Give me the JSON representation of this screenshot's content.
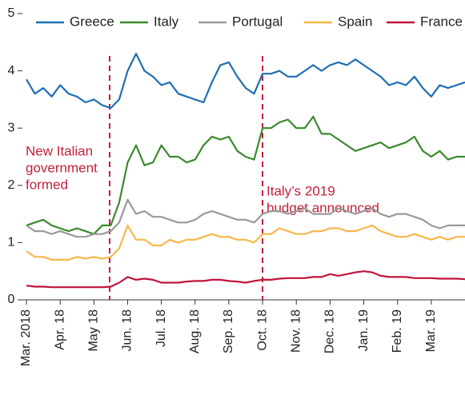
{
  "chart_data": {
    "type": "line",
    "categories": [
      "Mar. 2018",
      null,
      null,
      null,
      "Apr. 18",
      null,
      null,
      null,
      "May 18",
      null,
      null,
      null,
      "Jun. 18",
      null,
      null,
      null,
      "Jul. 18",
      null,
      null,
      null,
      "Aug. 18",
      null,
      null,
      null,
      "Sep. 18",
      null,
      null,
      null,
      "Oct. 18",
      null,
      null,
      null,
      "Nov. 18",
      null,
      null,
      null,
      "Dec. 18",
      null,
      null,
      null,
      "Jan. 19",
      null,
      null,
      null,
      "Feb. 19",
      null,
      null,
      null,
      "Mar. 19",
      null,
      null,
      null,
      null
    ],
    "series": [
      {
        "name": "Greece",
        "color": "#1f6fb4",
        "values": [
          3.85,
          3.6,
          3.7,
          3.55,
          3.75,
          3.6,
          3.55,
          3.45,
          3.5,
          3.4,
          3.35,
          3.5,
          4.0,
          4.3,
          4.0,
          3.9,
          3.75,
          3.8,
          3.6,
          3.55,
          3.5,
          3.45,
          3.8,
          4.1,
          4.15,
          3.9,
          3.7,
          3.6,
          3.95,
          3.95,
          4.0,
          3.9,
          3.9,
          4.0,
          4.1,
          4.0,
          4.1,
          4.15,
          4.1,
          4.2,
          4.1,
          4.0,
          3.9,
          3.75,
          3.8,
          3.75,
          3.9,
          3.7,
          3.55,
          3.75,
          3.7,
          3.75,
          3.8
        ]
      },
      {
        "name": "Italy",
        "color": "#3b8a2e",
        "values": [
          1.3,
          1.35,
          1.4,
          1.3,
          1.25,
          1.2,
          1.25,
          1.2,
          1.15,
          1.3,
          1.3,
          1.7,
          2.4,
          2.7,
          2.35,
          2.4,
          2.7,
          2.5,
          2.5,
          2.4,
          2.45,
          2.7,
          2.85,
          2.8,
          2.85,
          2.6,
          2.5,
          2.45,
          3.0,
          3.0,
          3.1,
          3.15,
          3.0,
          3.0,
          3.2,
          2.9,
          2.9,
          2.8,
          2.7,
          2.6,
          2.65,
          2.7,
          2.75,
          2.65,
          2.7,
          2.75,
          2.85,
          2.6,
          2.5,
          2.6,
          2.45,
          2.5,
          2.5
        ]
      },
      {
        "name": "Portugal",
        "color": "#9a9a9a",
        "values": [
          1.3,
          1.2,
          1.2,
          1.15,
          1.2,
          1.15,
          1.1,
          1.1,
          1.15,
          1.15,
          1.2,
          1.35,
          1.75,
          1.5,
          1.55,
          1.45,
          1.45,
          1.4,
          1.35,
          1.35,
          1.4,
          1.5,
          1.55,
          1.5,
          1.45,
          1.4,
          1.4,
          1.35,
          1.5,
          1.55,
          1.55,
          1.5,
          1.55,
          1.6,
          1.5,
          1.5,
          1.5,
          1.6,
          1.55,
          1.5,
          1.55,
          1.6,
          1.5,
          1.45,
          1.5,
          1.5,
          1.45,
          1.4,
          1.3,
          1.25,
          1.3,
          1.3,
          1.3
        ]
      },
      {
        "name": "Spain",
        "color": "#f7b84a",
        "values": [
          0.85,
          0.75,
          0.75,
          0.7,
          0.7,
          0.7,
          0.75,
          0.72,
          0.75,
          0.72,
          0.75,
          0.9,
          1.3,
          1.05,
          1.05,
          0.95,
          0.95,
          1.05,
          1.0,
          1.05,
          1.05,
          1.1,
          1.15,
          1.1,
          1.1,
          1.05,
          1.05,
          1.0,
          1.15,
          1.15,
          1.25,
          1.2,
          1.15,
          1.15,
          1.2,
          1.2,
          1.25,
          1.25,
          1.2,
          1.2,
          1.25,
          1.3,
          1.2,
          1.15,
          1.1,
          1.1,
          1.15,
          1.1,
          1.05,
          1.1,
          1.05,
          1.1,
          1.1
        ]
      },
      {
        "name": "France",
        "color": "#c0143c",
        "values": [
          0.25,
          0.23,
          0.23,
          0.22,
          0.22,
          0.22,
          0.22,
          0.22,
          0.22,
          0.22,
          0.23,
          0.3,
          0.4,
          0.35,
          0.37,
          0.35,
          0.3,
          0.3,
          0.3,
          0.32,
          0.33,
          0.33,
          0.35,
          0.35,
          0.33,
          0.32,
          0.3,
          0.33,
          0.35,
          0.35,
          0.37,
          0.38,
          0.38,
          0.38,
          0.4,
          0.4,
          0.45,
          0.42,
          0.45,
          0.48,
          0.5,
          0.48,
          0.42,
          0.4,
          0.4,
          0.4,
          0.38,
          0.38,
          0.38,
          0.37,
          0.37,
          0.37,
          0.36
        ]
      }
    ],
    "ylim": [
      0,
      5
    ],
    "yticks": [
      0,
      1,
      2,
      3,
      4,
      5
    ],
    "annotations": [
      {
        "text": [
          "New Italian",
          "government",
          "formed"
        ],
        "color": "#c41e3a"
      },
      {
        "text": [
          "Italy’s 2019",
          "budget announced"
        ],
        "color": "#c41e3a"
      }
    ]
  }
}
